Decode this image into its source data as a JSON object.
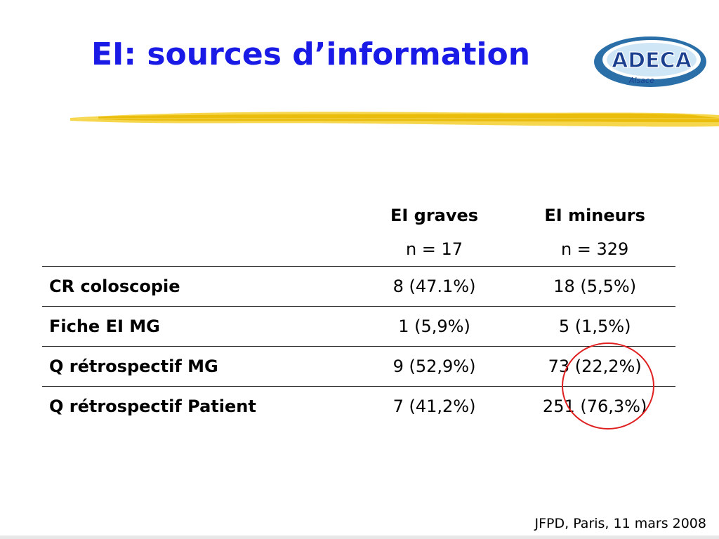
{
  "slide": {
    "title": "EI: sources d’information",
    "logo": {
      "text": "ADECA",
      "subtext": "Alsace",
      "colors": {
        "outer": "#2a6fa8",
        "inner": "#6fb3e0",
        "text": "#1a3f8f"
      }
    },
    "highlight_color": "#f2c81e",
    "table": {
      "headers": [
        {
          "label": "",
          "sub": ""
        },
        {
          "label": "EI graves",
          "sub": "n = 17"
        },
        {
          "label": "EI mineurs",
          "sub": "n = 329"
        }
      ],
      "rows": [
        {
          "label": "CR coloscopie",
          "graves": "8 (47.1%)",
          "mineurs": "18 (5,5%)"
        },
        {
          "label": "Fiche EI MG",
          "graves": "1 (5,9%)",
          "mineurs": "5 (1,5%)"
        },
        {
          "label": "Q rétrospectif MG",
          "graves": "9 (52,9%)",
          "mineurs": "73 (22,2%)"
        },
        {
          "label": "Q rétrospectif Patient",
          "graves": "7 (41,2%)",
          "mineurs": "251 (76,3%)"
        }
      ]
    },
    "annotation_color": "#e02020",
    "footer": "JFPD, Paris, 11 mars 2008"
  }
}
